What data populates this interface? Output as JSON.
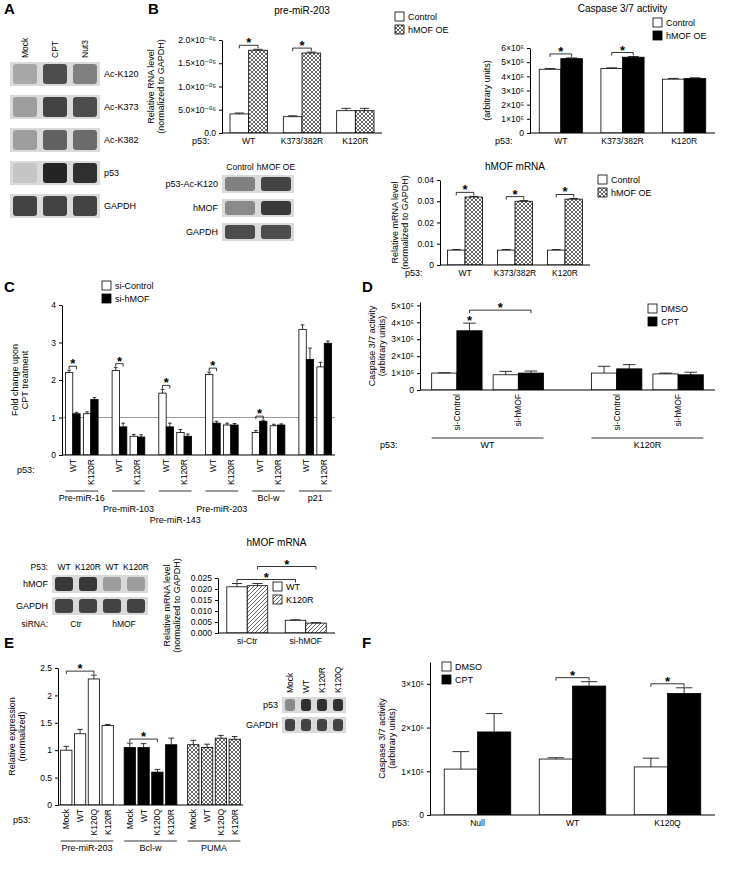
{
  "panel_labels": [
    "A",
    "B",
    "C",
    "D",
    "E",
    "F"
  ],
  "blots": [
    {
      "lanes": [
        "Mock",
        "CPT",
        "Nut3"
      ],
      "rows": [
        "Ac-K120",
        "Ac-K373",
        "Ac-K382",
        "p53",
        "GAPDH"
      ],
      "signal": [
        [
          0.25,
          0.7,
          0.45
        ],
        [
          0.3,
          0.75,
          0.7
        ],
        [
          0.3,
          0.6,
          0.55
        ],
        [
          0.1,
          0.9,
          0.85
        ],
        [
          0.75,
          0.75,
          0.75
        ]
      ]
    },
    {
      "lanes": [
        "Control",
        "hMOF OE"
      ],
      "rows": [
        "p53-Ac-K120",
        "hMOF",
        "GAPDH"
      ],
      "signal": [
        [
          0.45,
          0.75
        ],
        [
          0.4,
          0.8
        ],
        [
          0.7,
          0.7
        ]
      ]
    },
    {
      "lane_label": "P53:",
      "lanes": [
        "WT",
        "K120R",
        "WT",
        "K120R"
      ],
      "group_label": "siRNA:",
      "lane_groups": [
        "Ctr",
        "hMOF"
      ],
      "rows": [
        "hMOF",
        "GAPDH"
      ],
      "signal": [
        [
          0.8,
          0.8,
          0.3,
          0.3
        ],
        [
          0.75,
          0.75,
          0.75,
          0.75
        ]
      ]
    },
    {
      "lanes": [
        "Mock",
        "WT",
        "K120R",
        "K120Q"
      ],
      "rows": [
        "p53",
        "GAPDH"
      ],
      "signal": [
        [
          0.4,
          0.85,
          0.85,
          0.85
        ],
        [
          0.75,
          0.75,
          0.75,
          0.75
        ]
      ]
    }
  ],
  "chart_data": [
    {
      "type": "bar",
      "title": "pre-miR-203",
      "y_label": [
        "Relative RNA level",
        "(normalized to GAPDH)"
      ],
      "x_label": "p53:",
      "categories": [
        "WT",
        "K373/382R",
        "K120R"
      ],
      "series": [
        {
          "name": "Control",
          "color": "#ffffff",
          "values": [
            4.1e-06,
            3.5e-06,
            4.8e-06
          ],
          "errors": [
            2e-07,
            2e-07,
            5e-07
          ]
        },
        {
          "name": "hMOF OE",
          "color": "#ffffff",
          "marker": "crosshatch",
          "values": [
            1.78e-05,
            1.72e-05,
            4.8e-06
          ],
          "errors": [
            2e-07,
            2e-07,
            5e-07
          ]
        }
      ],
      "ylim": [
        0,
        2e-05
      ],
      "yticks": [
        {
          "value": 0,
          "label": "0.0"
        },
        {
          "value": 5e-06,
          "label": "5.0×10⁻⁰⁶"
        },
        {
          "value": 1e-05,
          "label": "1.0×10⁻⁰⁵"
        },
        {
          "value": 1.5e-05,
          "label": "1.5×10⁻⁰⁵"
        },
        {
          "value": 2e-05,
          "label": "2.0×10⁻⁰⁵"
        }
      ],
      "legend": "top-right",
      "significance": [
        {
          "text": "*",
          "from": [
            0,
            0
          ],
          "to": [
            0,
            1
          ]
        },
        {
          "text": "*",
          "from": [
            1,
            0
          ],
          "to": [
            1,
            1
          ]
        }
      ]
    },
    {
      "type": "bar",
      "title": "Caspase 3/7 activity",
      "y_label": [
        "(arbitrary units)"
      ],
      "x_label": "p53:",
      "categories": [
        "WT",
        "K373/382R",
        "K120R"
      ],
      "series": [
        {
          "name": "Control",
          "color": "#ffffff",
          "values": [
            450000,
            455000,
            380000
          ],
          "errors": [
            5000,
            5000,
            5000
          ]
        },
        {
          "name": "hMOF OE",
          "color": "#000000",
          "values": [
            525000,
            535000,
            385000
          ],
          "errors": [
            5000,
            5000,
            5000
          ]
        }
      ],
      "ylim": [
        0,
        600000
      ],
      "yticks": [
        0,
        {
          "value": 100000,
          "label": "1×10⁵"
        },
        {
          "value": 200000,
          "label": "2×10⁵"
        },
        {
          "value": 300000,
          "label": "3×10⁵"
        },
        {
          "value": 400000,
          "label": "4×10⁵"
        },
        {
          "value": 500000,
          "label": "5×10⁵"
        },
        {
          "value": 600000,
          "label": "6×10⁵"
        }
      ],
      "legend": "top-right",
      "significance": [
        {
          "text": "*",
          "from": [
            0,
            0
          ],
          "to": [
            0,
            1
          ]
        },
        {
          "text": "*",
          "from": [
            1,
            0
          ],
          "to": [
            1,
            1
          ]
        }
      ]
    },
    {
      "type": "bar",
      "title": "hMOF mRNA",
      "y_label": [
        "Relative mRNA level",
        "(normalized to GAPDH)"
      ],
      "x_label": "p53:",
      "categories": [
        "WT",
        "K373/382R",
        "K120R"
      ],
      "series": [
        {
          "name": "Control",
          "color": "#ffffff",
          "values": [
            0.007,
            0.007,
            0.007
          ],
          "errors": [
            0.0003,
            0.0003,
            0.0003
          ]
        },
        {
          "name": "hMOF OE",
          "color": "#ffffff",
          "marker": "crosshatch",
          "values": [
            0.032,
            0.03,
            0.031
          ],
          "errors": [
            0.0003,
            0.0003,
            0.0003
          ]
        }
      ],
      "ylim": [
        0,
        0.04
      ],
      "yticks": [
        0,
        0.01,
        0.02,
        0.03,
        0.04
      ],
      "legend": "top-right",
      "significance": [
        {
          "text": "*",
          "from": [
            0,
            0
          ],
          "to": [
            0,
            1
          ]
        },
        {
          "text": "*",
          "from": [
            1,
            0
          ],
          "to": [
            1,
            1
          ]
        },
        {
          "text": "*",
          "from": [
            2,
            0
          ],
          "to": [
            2,
            1
          ]
        }
      ]
    },
    {
      "type": "bar",
      "y_label": [
        "Fold change upon",
        "CPT treatment"
      ],
      "x_label": "p53:",
      "groups": [
        {
          "label": "Pre-miR-16",
          "categories": [
            "WT",
            "K120R"
          ]
        },
        {
          "label": "Pre-miR-103",
          "categories": [
            "WT",
            "K120R"
          ]
        },
        {
          "label": "Pre-miR-143",
          "categories": [
            "WT",
            "K120R"
          ]
        },
        {
          "label": "Pre-miR-203",
          "categories": [
            "WT",
            "K120R"
          ]
        },
        {
          "label": "Bcl-w",
          "categories": [
            "WT",
            "K120R"
          ]
        },
        {
          "label": "p21",
          "categories": [
            "WT",
            "K120R"
          ]
        }
      ],
      "series": [
        {
          "name": "si-Control",
          "color": "#ffffff",
          "values": [
            2.2,
            1.1,
            2.25,
            0.5,
            1.65,
            0.6,
            2.15,
            0.8,
            0.6,
            0.78,
            3.35,
            2.35
          ],
          "errors": [
            0.06,
            0.05,
            0.08,
            0.05,
            0.1,
            0.08,
            0.06,
            0.05,
            0.05,
            0.04,
            0.12,
            0.12
          ]
        },
        {
          "name": "si-hMOF",
          "color": "#000000",
          "values": [
            1.1,
            1.48,
            0.75,
            0.48,
            0.75,
            0.5,
            0.85,
            0.8,
            0.9,
            0.8,
            2.55,
            2.98
          ],
          "errors": [
            0.04,
            0.05,
            0.1,
            0.06,
            0.1,
            0.06,
            0.05,
            0.04,
            0.03,
            0.03,
            0.3,
            0.06
          ]
        }
      ],
      "ylim": [
        0,
        4
      ],
      "yticks": [
        0,
        1,
        2,
        3,
        4
      ],
      "reference_line": 1,
      "legend": "top-left",
      "significance": [
        {
          "text": "*",
          "from": [
            0,
            0
          ],
          "to": [
            0,
            1
          ]
        },
        {
          "text": "*",
          "from": [
            2,
            0
          ],
          "to": [
            2,
            1
          ]
        },
        {
          "text": "*",
          "from": [
            4,
            0
          ],
          "to": [
            4,
            1
          ]
        },
        {
          "text": "*",
          "from": [
            6,
            0
          ],
          "to": [
            6,
            1
          ]
        },
        {
          "text": "*",
          "from": [
            8,
            0
          ],
          "to": [
            8,
            1
          ]
        }
      ]
    },
    {
      "type": "bar",
      "title": "hMOF mRNA",
      "y_label": [
        "Relative mRNA level",
        "(normalized to GAPDH)"
      ],
      "categories": [
        "si-Ctr",
        "si-hMOF"
      ],
      "series": [
        {
          "name": "WT",
          "color": "#ffffff",
          "values": [
            0.021,
            0.0058
          ],
          "errors": [
            0.0015,
            0.0002
          ]
        },
        {
          "name": "K120R",
          "color": "#ffffff",
          "marker": "diagonal",
          "values": [
            0.0215,
            0.0045
          ],
          "errors": [
            0.001,
            0.0002
          ]
        }
      ],
      "ylim": [
        0,
        0.025
      ],
      "yticks": [
        {
          "value": 0,
          "label": "0.000"
        },
        0.005,
        {
          "value": 0.01,
          "label": "0.010"
        },
        0.015,
        {
          "value": 0.02,
          "label": "0.020"
        },
        0.025
      ],
      "legend": "top-right",
      "significance": [
        {
          "text": "*",
          "from": [
            0,
            0
          ],
          "to": [
            1,
            0
          ]
        },
        {
          "text": "*",
          "from": [
            0,
            1
          ],
          "to": [
            1,
            1
          ]
        }
      ]
    },
    {
      "type": "bar",
      "y_label": [
        "Caspase 3/7 activity",
        "(arbitrary units)"
      ],
      "x_label": "p53:",
      "groups": [
        {
          "label": "WT",
          "categories": [
            "si-Control",
            "si-hMOF"
          ]
        },
        {
          "label": "K120R",
          "categories": [
            "si-Control",
            "si-hMOF"
          ]
        }
      ],
      "series": [
        {
          "name": "DMSO",
          "color": "#ffffff",
          "values": [
            100000,
            90000,
            100000,
            95000
          ],
          "errors": [
            2000,
            20000,
            40000,
            5000
          ]
        },
        {
          "name": "CPT",
          "color": "#000000",
          "values": [
            350000,
            100000,
            125000,
            90000
          ],
          "errors": [
            45000,
            12000,
            25000,
            15000
          ]
        }
      ],
      "ylim": [
        0,
        520000
      ],
      "yticks": [
        0,
        {
          "value": 100000,
          "label": "1×10⁵"
        },
        {
          "value": 200000,
          "label": "2×10⁵"
        },
        {
          "value": 300000,
          "label": "3×10⁵"
        },
        {
          "value": 400000,
          "label": "4×10⁵"
        },
        {
          "value": 500000,
          "label": "5×10⁵"
        }
      ],
      "legend": "top-right",
      "significance": [
        {
          "text": "*",
          "at": [
            0,
            1
          ]
        },
        {
          "text": "*",
          "from": [
            0,
            1
          ],
          "to": [
            1,
            1
          ]
        }
      ]
    },
    {
      "type": "bar",
      "y_label": [
        "Relative expression",
        "(normalized)"
      ],
      "x_label": "p53:",
      "groups": [
        {
          "label": "Pre-miR-203",
          "categories": [
            "Mock",
            "WT",
            "K120Q",
            "K120R"
          ]
        },
        {
          "label": "Bcl-w",
          "categories": [
            "Mock",
            "WT",
            "K120Q",
            "K120R"
          ]
        },
        {
          "label": "PUMA",
          "categories": [
            "Mock",
            "WT",
            "K120Q",
            "K120R"
          ]
        }
      ],
      "series": [
        {
          "color": "#ffffff",
          "values": [
            1.0,
            1.3,
            2.3,
            1.45,
            null,
            null,
            null,
            null,
            null,
            null,
            null,
            null
          ],
          "errors": [
            0.07,
            0.08,
            0.07,
            0.02,
            null,
            null,
            null,
            null,
            null,
            null,
            null,
            null
          ]
        },
        {
          "color": "#000000",
          "values": [
            null,
            null,
            null,
            null,
            1.05,
            1.05,
            0.6,
            1.1,
            null,
            null,
            null,
            null
          ],
          "errors": [
            null,
            null,
            null,
            null,
            0.08,
            0.07,
            0.05,
            0.12,
            null,
            null,
            null,
            null
          ]
        },
        {
          "color": "#ffffff",
          "marker": "crosshatch",
          "values": [
            null,
            null,
            null,
            null,
            null,
            null,
            null,
            null,
            1.1,
            1.05,
            1.22,
            1.2
          ],
          "errors": [
            null,
            null,
            null,
            null,
            null,
            null,
            null,
            null,
            0.08,
            0.06,
            0.05,
            0.05
          ]
        }
      ],
      "ylim": [
        0,
        2.5
      ],
      "yticks": [
        0,
        0.5,
        1,
        1.5,
        2,
        2.5
      ],
      "significance": [
        {
          "text": "*",
          "from": [
            0,
            0
          ],
          "to": [
            2,
            0
          ]
        },
        {
          "text": "*",
          "from": [
            4,
            1
          ],
          "to": [
            6,
            1
          ]
        }
      ]
    },
    {
      "type": "bar",
      "y_label": [
        "Caspase 3/7 activity",
        "(arbitrary units)"
      ],
      "x_label": "p53:",
      "categories": [
        "Null",
        "WT",
        "K120Q"
      ],
      "series": [
        {
          "name": "DMSO",
          "color": "#ffffff",
          "values": [
            105000,
            128000,
            110000
          ],
          "errors": [
            40000,
            3000,
            20000
          ]
        },
        {
          "name": "CPT",
          "color": "#000000",
          "values": [
            190000,
            295000,
            278000
          ],
          "errors": [
            42000,
            10000,
            13000
          ]
        }
      ],
      "ylim": [
        0,
        350000
      ],
      "yticks": [
        0,
        {
          "value": 100000,
          "label": "1×10⁵"
        },
        {
          "value": 200000,
          "label": "2×10⁵"
        },
        {
          "value": 300000,
          "label": "3×10⁵"
        }
      ],
      "legend": "top-left",
      "significance": [
        {
          "text": "*",
          "from": [
            1,
            0
          ],
          "to": [
            1,
            1
          ]
        },
        {
          "text": "*",
          "from": [
            2,
            0
          ],
          "to": [
            2,
            1
          ]
        }
      ]
    }
  ]
}
